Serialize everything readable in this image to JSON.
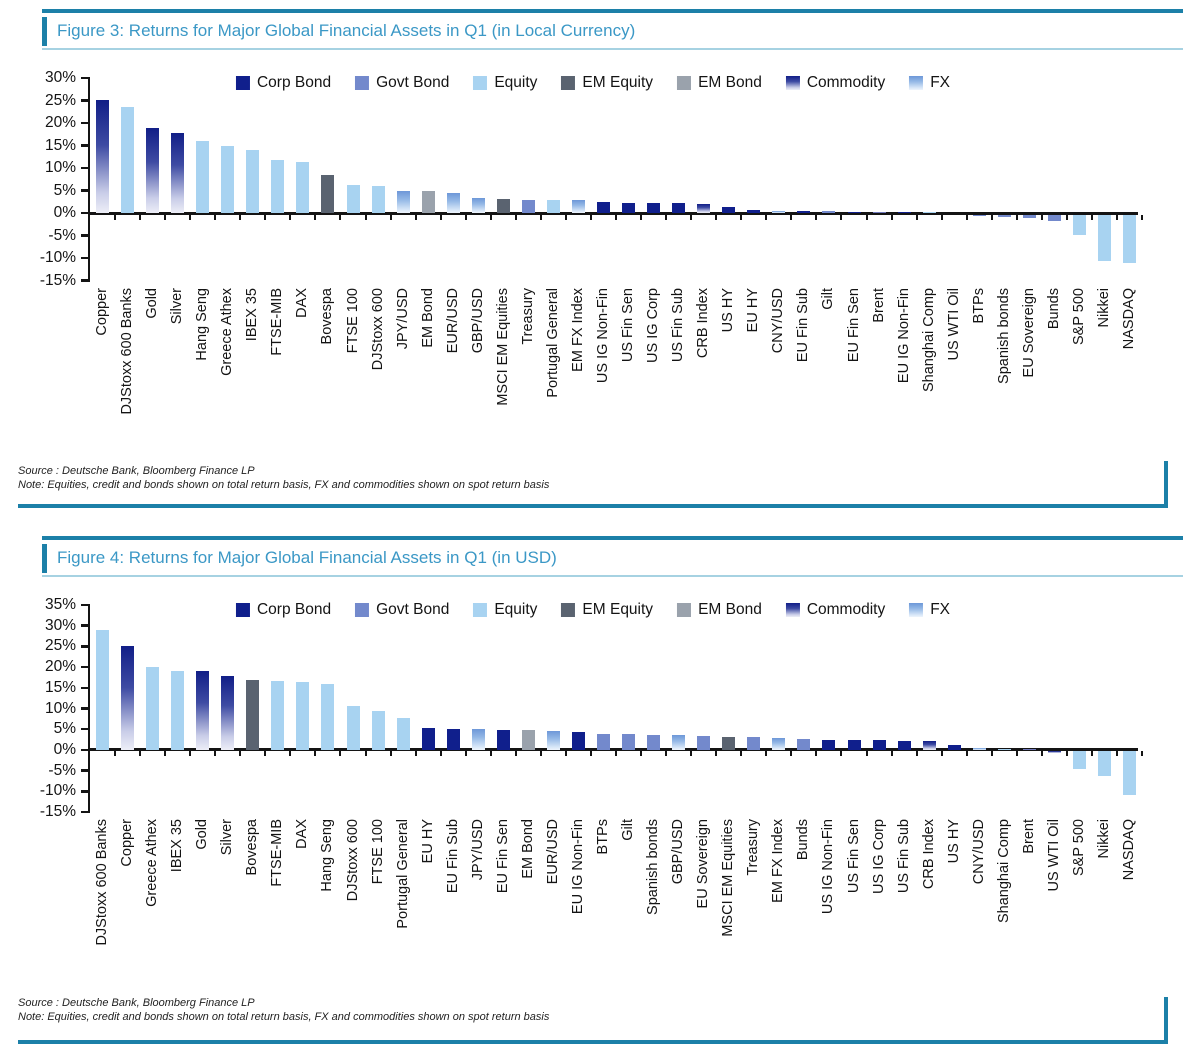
{
  "colors": {
    "accent_rule": "#1c80a8",
    "title_text": "#3b98c6",
    "title_underline": "#a6d2e2",
    "axis_black": "#141414",
    "corp_bond": "#101f8c",
    "govt_bond": "#7389cc",
    "equity": "#a8d3f1",
    "em_equity": "#5a6370",
    "em_bond": "#9aa2ac",
    "commodity_top": "#111e87",
    "commodity_bottom": "#edeef7",
    "fx_top": "#6d97d8",
    "fx_bottom": "#eef4fc"
  },
  "figures": [
    {
      "title": "Figure 3: Returns for Major Global Financial Assets in Q1 (in Local Currency)",
      "source": "Source : Deutsche Bank, Bloomberg Finance LP",
      "note": "Note: Equities, credit and bonds shown on total return basis, FX and commodities shown on spot return basis",
      "chart_data": {
        "type": "bar",
        "title": "Returns for Major Global Financial Assets in Q1 (in Local Currency)",
        "xlabel": "",
        "ylabel": "",
        "ylim": [
          -15,
          30
        ],
        "ytick_step": 5,
        "ytick_labels": [
          "30%",
          "25%",
          "20%",
          "15%",
          "10%",
          "5%",
          "0%",
          "-5%",
          "-10%",
          "-15%"
        ],
        "grid": false,
        "legend_position": "top-center",
        "legend": [
          {
            "label": "Corp Bond",
            "key": "corp_bond"
          },
          {
            "label": "Govt Bond",
            "key": "govt_bond"
          },
          {
            "label": "Equity",
            "key": "equity"
          },
          {
            "label": "EM Equity",
            "key": "em_equity"
          },
          {
            "label": "EM Bond",
            "key": "em_bond"
          },
          {
            "label": "Commodity",
            "key": "commodity"
          },
          {
            "label": "FX",
            "key": "fx"
          }
        ],
        "bar_format": [
          "label",
          "value_pct",
          "class_key"
        ],
        "bars": [
          [
            "Copper",
            25.2,
            "commodity"
          ],
          [
            "DJStoxx 600 Banks",
            23.5,
            "equity"
          ],
          [
            "Gold",
            19.0,
            "commodity"
          ],
          [
            "Silver",
            17.8,
            "commodity"
          ],
          [
            "Hang Seng",
            16.1,
            "equity"
          ],
          [
            "Greece Athex",
            14.9,
            "equity"
          ],
          [
            "IBEX 35",
            14.0,
            "equity"
          ],
          [
            "FTSE-MIB",
            11.8,
            "equity"
          ],
          [
            "DAX",
            11.4,
            "equity"
          ],
          [
            "Bovespa",
            8.4,
            "em_equity"
          ],
          [
            "FTSE 100",
            6.2,
            "equity"
          ],
          [
            "DJStoxx 600",
            6.0,
            "equity"
          ],
          [
            "JPY/USD",
            5.0,
            "fx"
          ],
          [
            "EM Bond",
            4.8,
            "em_bond"
          ],
          [
            "EUR/USD",
            4.5,
            "fx"
          ],
          [
            "GBP/USD",
            3.3,
            "fx"
          ],
          [
            "MSCI EM Equities",
            3.1,
            "em_equity"
          ],
          [
            "Treasury",
            3.0,
            "govt_bond"
          ],
          [
            "Portugal General",
            2.9,
            "equity"
          ],
          [
            "EM FX Index",
            2.8,
            "fx"
          ],
          [
            "US IG Non-Fin",
            2.4,
            "corp_bond"
          ],
          [
            "US Fin Sen",
            2.3,
            "corp_bond"
          ],
          [
            "US IG Corp",
            2.3,
            "corp_bond"
          ],
          [
            "US Fin Sub",
            2.2,
            "corp_bond"
          ],
          [
            "CRB Index",
            2.1,
            "commodity"
          ],
          [
            "US HY",
            1.4,
            "corp_bond"
          ],
          [
            "EU HY",
            0.6,
            "corp_bond"
          ],
          [
            "CNY/USD",
            0.5,
            "fx"
          ],
          [
            "EU Fin Sub",
            0.5,
            "corp_bond"
          ],
          [
            "Gilt",
            0.4,
            "govt_bond"
          ],
          [
            "EU Fin Sen",
            0.3,
            "corp_bond"
          ],
          [
            "Brent",
            0.2,
            "commodity"
          ],
          [
            "EU IG Non-Fin",
            0.1,
            "corp_bond"
          ],
          [
            "Shanghai Comp",
            0.1,
            "equity"
          ],
          [
            "US WTI Oil",
            -0.2,
            "commodity"
          ],
          [
            "BTPs",
            -0.4,
            "govt_bond"
          ],
          [
            "Spanish bonds",
            -0.6,
            "govt_bond"
          ],
          [
            "EU Sovereign",
            -0.7,
            "govt_bond"
          ],
          [
            "Bunds",
            -1.4,
            "govt_bond"
          ],
          [
            "S&P 500",
            -4.5,
            "equity"
          ],
          [
            "Nikkei",
            -10.4,
            "equity"
          ],
          [
            "NASDAQ",
            -10.7,
            "equity"
          ]
        ]
      }
    },
    {
      "title": "Figure 4: Returns for Major Global Financial Assets in Q1 (in USD)",
      "source": "Source : Deutsche Bank, Bloomberg Finance LP",
      "note": "Note: Equities, credit and bonds shown on total return basis, FX and commodities shown on spot return basis",
      "chart_data": {
        "type": "bar",
        "title": "Returns for Major Global Financial Assets in Q1 (in USD)",
        "xlabel": "",
        "ylabel": "",
        "ylim": [
          -15,
          35
        ],
        "ytick_step": 5,
        "ytick_labels": [
          "35%",
          "30%",
          "25%",
          "20%",
          "15%",
          "10%",
          "5%",
          "0%",
          "-5%",
          "-10%",
          "-15%"
        ],
        "grid": false,
        "legend_position": "top-center",
        "legend": [
          {
            "label": "Corp Bond",
            "key": "corp_bond"
          },
          {
            "label": "Govt Bond",
            "key": "govt_bond"
          },
          {
            "label": "Equity",
            "key": "equity"
          },
          {
            "label": "EM Equity",
            "key": "em_equity"
          },
          {
            "label": "EM Bond",
            "key": "em_bond"
          },
          {
            "label": "Commodity",
            "key": "commodity"
          },
          {
            "label": "FX",
            "key": "fx"
          }
        ],
        "bar_format": [
          "label",
          "value_pct",
          "class_key"
        ],
        "bars": [
          [
            "DJStoxx 600 Banks",
            29.0,
            "equity"
          ],
          [
            "Copper",
            25.0,
            "commodity"
          ],
          [
            "Greece Athex",
            20.0,
            "equity"
          ],
          [
            "IBEX 35",
            19.1,
            "equity"
          ],
          [
            "Gold",
            19.0,
            "commodity"
          ],
          [
            "Silver",
            17.8,
            "commodity"
          ],
          [
            "Bovespa",
            17.0,
            "em_equity"
          ],
          [
            "FTSE-MIB",
            16.7,
            "equity"
          ],
          [
            "DAX",
            16.3,
            "equity"
          ],
          [
            "Hang Seng",
            15.9,
            "equity"
          ],
          [
            "DJStoxx 600",
            10.7,
            "equity"
          ],
          [
            "FTSE 100",
            9.5,
            "equity"
          ],
          [
            "Portugal General",
            7.7,
            "equity"
          ],
          [
            "EU HY",
            5.2,
            "corp_bond"
          ],
          [
            "EU Fin Sub",
            5.1,
            "corp_bond"
          ],
          [
            "JPY/USD",
            5.0,
            "fx"
          ],
          [
            "EU Fin Sen",
            4.9,
            "corp_bond"
          ],
          [
            "EM Bond",
            4.7,
            "em_bond"
          ],
          [
            "EUR/USD",
            4.6,
            "fx"
          ],
          [
            "EU IG Non-Fin",
            4.3,
            "corp_bond"
          ],
          [
            "BTPs",
            3.9,
            "govt_bond"
          ],
          [
            "Gilt",
            3.8,
            "govt_bond"
          ],
          [
            "Spanish bonds",
            3.6,
            "govt_bond"
          ],
          [
            "GBP/USD",
            3.5,
            "fx"
          ],
          [
            "EU Sovereign",
            3.3,
            "govt_bond"
          ],
          [
            "MSCI EM Equities",
            3.1,
            "em_equity"
          ],
          [
            "Treasury",
            3.0,
            "govt_bond"
          ],
          [
            "EM FX Index",
            2.8,
            "fx"
          ],
          [
            "Bunds",
            2.6,
            "govt_bond"
          ],
          [
            "US IG Non-Fin",
            2.4,
            "corp_bond"
          ],
          [
            "US Fin Sen",
            2.3,
            "corp_bond"
          ],
          [
            "US IG Corp",
            2.3,
            "corp_bond"
          ],
          [
            "US Fin Sub",
            2.2,
            "corp_bond"
          ],
          [
            "CRB Index",
            2.1,
            "commodity"
          ],
          [
            "US HY",
            1.2,
            "corp_bond"
          ],
          [
            "CNY/USD",
            0.4,
            "fx"
          ],
          [
            "Shanghai Comp",
            0.1,
            "equity"
          ],
          [
            "Brent",
            0.1,
            "commodity"
          ],
          [
            "US WTI Oil",
            -0.3,
            "commodity"
          ],
          [
            "S&P 500",
            -4.2,
            "equity"
          ],
          [
            "Nikkei",
            -6.0,
            "equity"
          ],
          [
            "NASDAQ",
            -10.5,
            "equity"
          ]
        ]
      }
    }
  ]
}
